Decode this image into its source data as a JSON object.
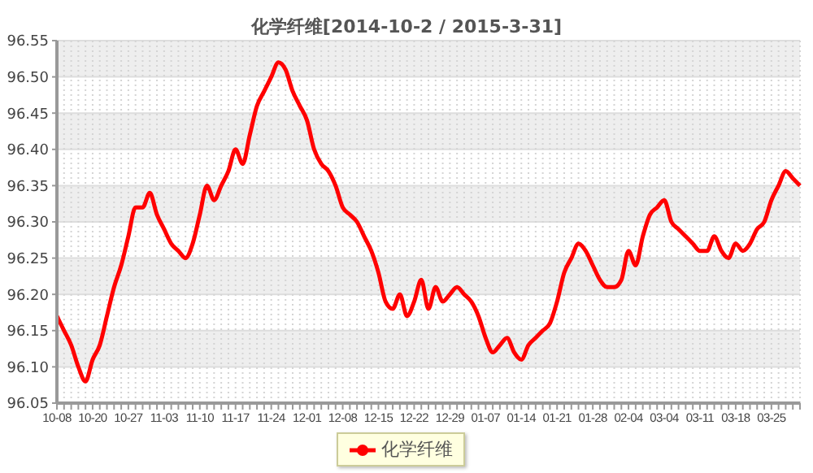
{
  "chart_data": {
    "type": "line",
    "title": "化学纤维[2014-10-2 / 2015-3-31]",
    "categories": [
      "10-08",
      null,
      null,
      null,
      null,
      "10-20",
      null,
      null,
      null,
      null,
      "10-27",
      null,
      null,
      null,
      null,
      "11-03",
      null,
      null,
      null,
      null,
      "11-10",
      null,
      null,
      null,
      null,
      "11-17",
      null,
      null,
      null,
      null,
      "11-24",
      null,
      null,
      null,
      null,
      "12-01",
      null,
      null,
      null,
      null,
      "12-08",
      null,
      null,
      null,
      null,
      "12-15",
      null,
      null,
      null,
      null,
      "12-22",
      null,
      null,
      null,
      null,
      "12-29",
      null,
      null,
      null,
      null,
      "01-07",
      null,
      null,
      null,
      null,
      "01-14",
      null,
      null,
      null,
      null,
      "01-21",
      null,
      null,
      null,
      null,
      "01-28",
      null,
      null,
      null,
      null,
      "02-04",
      null,
      null,
      null,
      null,
      "03-04",
      null,
      null,
      null,
      null,
      "03-11",
      null,
      null,
      null,
      null,
      "03-18",
      null,
      null,
      null,
      null,
      "03-25",
      null,
      null,
      null,
      null
    ],
    "series": [
      {
        "name": "化学纤维",
        "color": "#ff0000",
        "values": [
          96.17,
          96.15,
          96.13,
          96.1,
          96.08,
          96.11,
          96.13,
          96.17,
          96.21,
          96.24,
          96.28,
          96.32,
          96.32,
          96.34,
          96.31,
          96.29,
          96.27,
          96.26,
          96.25,
          96.27,
          96.31,
          96.35,
          96.33,
          96.35,
          96.37,
          96.4,
          96.38,
          96.42,
          96.46,
          96.48,
          96.5,
          96.52,
          96.51,
          96.48,
          96.46,
          96.44,
          96.4,
          96.38,
          96.37,
          96.35,
          96.32,
          96.31,
          96.3,
          96.28,
          96.26,
          96.23,
          96.19,
          96.18,
          96.2,
          96.17,
          96.19,
          96.22,
          96.18,
          96.21,
          96.19,
          96.2,
          96.21,
          96.2,
          96.19,
          96.17,
          96.14,
          96.12,
          96.13,
          96.14,
          96.12,
          96.11,
          96.13,
          96.14,
          96.15,
          96.16,
          96.19,
          96.23,
          96.25,
          96.27,
          96.26,
          96.24,
          96.22,
          96.21,
          96.21,
          96.22,
          96.26,
          96.24,
          96.28,
          96.31,
          96.32,
          96.33,
          96.3,
          96.29,
          96.28,
          96.27,
          96.26,
          96.26,
          96.28,
          96.26,
          96.25,
          96.27,
          96.26,
          96.27,
          96.29,
          96.3,
          96.33,
          96.35,
          96.37,
          96.36,
          96.35
        ]
      }
    ],
    "ylim": [
      96.05,
      96.55
    ],
    "yticks": [
      96.05,
      {
        "value": 96.1,
        "label": "96.10"
      },
      96.15,
      {
        "value": 96.2,
        "label": "96.20"
      },
      96.25,
      {
        "value": 96.3,
        "label": "96.30"
      },
      96.35,
      {
        "value": 96.4,
        "label": "96.40"
      },
      96.45,
      {
        "value": 96.5,
        "label": "96.50"
      },
      96.55
    ],
    "grid": true,
    "legend": "bottom",
    "marker": "none",
    "line_style": "solid"
  }
}
